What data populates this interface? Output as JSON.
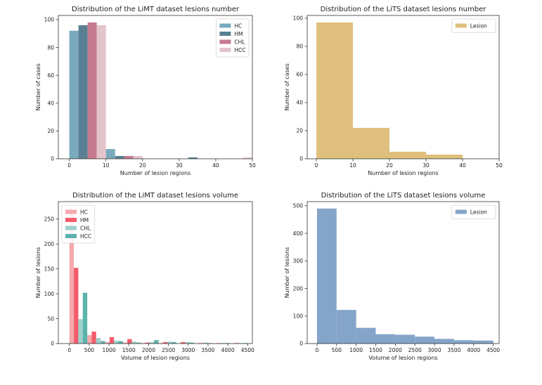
{
  "chart_data": [
    {
      "type": "bar",
      "title": "Distribution of the LiMT dataset lesions number",
      "xlabel": "Number of lesion regions",
      "ylabel": "Number of cases",
      "xlim": [
        -3,
        50
      ],
      "ylim": [
        0,
        103
      ],
      "xticks": [
        0,
        10,
        20,
        30,
        40,
        50
      ],
      "yticks": [
        0,
        20,
        40,
        60,
        80,
        100
      ],
      "legend_position": "top-right",
      "bin_edges": [
        0,
        10,
        20,
        30,
        40,
        50
      ],
      "series": [
        {
          "name": "HC",
          "color": "#79aabd",
          "values": [
            92,
            7,
            0,
            0,
            0
          ]
        },
        {
          "name": "HM",
          "color": "#5a7f92",
          "values": [
            96,
            2,
            0,
            1,
            0
          ]
        },
        {
          "name": "CHL",
          "color": "#c57a90",
          "values": [
            98,
            2,
            0,
            0,
            0
          ]
        },
        {
          "name": "HCC",
          "color": "#e4c4cb",
          "values": [
            96,
            2,
            0,
            0,
            1
          ]
        }
      ]
    },
    {
      "type": "bar",
      "title": "Distribution of the LiTS dataset lesions number",
      "xlabel": "Number of lesion regions",
      "ylabel": "Number of cases",
      "xlim": [
        -2.5,
        50
      ],
      "ylim": [
        0,
        102
      ],
      "xticks": [
        0,
        10,
        20,
        30,
        40,
        50
      ],
      "yticks": [
        0,
        20,
        40,
        60,
        80,
        100
      ],
      "legend_position": "top-right",
      "bin_edges": [
        0,
        10,
        20,
        30,
        40
      ],
      "series": [
        {
          "name": "Lesion",
          "color": "#dfc07e",
          "values": [
            97,
            22,
            5,
            3
          ]
        }
      ]
    },
    {
      "type": "bar",
      "title": "Distribution of the LiMT dataset lesions volume",
      "xlabel": "Volume of lesion regions",
      "ylabel": "Number of lesions",
      "xlim": [
        -280,
        4620
      ],
      "ylim": [
        0,
        285
      ],
      "xticks": [
        0,
        500,
        1000,
        1500,
        2000,
        2500,
        3000,
        3500,
        4000,
        4500
      ],
      "yticks": [
        0,
        50,
        100,
        150,
        200,
        250
      ],
      "legend_position": "top-left",
      "bin_edges": [
        0,
        450,
        900,
        1350,
        1800,
        2250,
        2700,
        3150,
        3600,
        4050,
        4500
      ],
      "series": [
        {
          "name": "HC",
          "color": "#f4a9ad",
          "values": [
            270,
            17,
            3,
            2,
            1,
            1,
            0,
            0,
            0,
            0
          ]
        },
        {
          "name": "HM",
          "color": "#f25c6b",
          "values": [
            152,
            24,
            13,
            9,
            2,
            3,
            3,
            1,
            1,
            1
          ]
        },
        {
          "name": "CHL",
          "color": "#9ed1cb",
          "values": [
            49,
            11,
            6,
            4,
            3,
            4,
            3,
            2,
            1,
            1
          ]
        },
        {
          "name": "HCC",
          "color": "#5bb3ad",
          "values": [
            102,
            5,
            5,
            2,
            7,
            3,
            2,
            1,
            1,
            1
          ]
        }
      ]
    },
    {
      "type": "bar",
      "title": "Distribution of the LiTS dataset lesions volume",
      "xlabel": "Volume of lesion regions",
      "ylabel": "Number of lesions",
      "xlim": [
        -250,
        4650
      ],
      "ylim": [
        0,
        515
      ],
      "xticks": [
        0,
        500,
        1000,
        1500,
        2000,
        2500,
        3000,
        3500,
        4000,
        4500
      ],
      "yticks": [
        0,
        100,
        200,
        300,
        400,
        500
      ],
      "legend_position": "top-right",
      "bin_edges": [
        0,
        500,
        1000,
        1500,
        2000,
        2500,
        3000,
        3500,
        4000,
        4500
      ],
      "series": [
        {
          "name": "Lesion",
          "color": "#84a5c9",
          "values": [
            490,
            122,
            57,
            34,
            32,
            25,
            17,
            12,
            11
          ]
        }
      ]
    }
  ]
}
